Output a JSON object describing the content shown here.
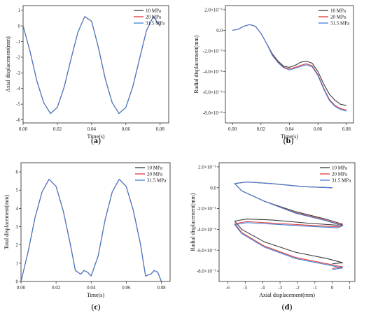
{
  "colors": {
    "10 MPa": "#3a3a3a",
    "20 MPa": "#e03a3a",
    "31.5 MPa": "#3f7fd6"
  },
  "chart_data": [
    {
      "id": "a",
      "type": "line",
      "label": "(a)",
      "xlabel": "Time(s)",
      "ylabel": "Axial displacement(mm)",
      "xlim": [
        0,
        0.085
      ],
      "ylim": [
        -6.2,
        1.3
      ],
      "xticks": [
        0.0,
        0.02,
        0.04,
        0.06,
        0.08
      ],
      "xtick_labels": [
        "0.00",
        "0.02",
        "0.04",
        "0.06",
        "0.08"
      ],
      "yticks": [
        1,
        0,
        -1,
        -2,
        -3,
        -4,
        -5,
        -6
      ],
      "ytick_labels": [
        "1",
        "0",
        "-1",
        "-2",
        "-3",
        "-4",
        "-5",
        "-6"
      ],
      "legend": "top-right",
      "series": [
        {
          "name": "10 MPa",
          "x": [
            0,
            0.004,
            0.008,
            0.012,
            0.016,
            0.02,
            0.024,
            0.028,
            0.032,
            0.036,
            0.04,
            0.044,
            0.048,
            0.052,
            0.056,
            0.06,
            0.064,
            0.068,
            0.072,
            0.076,
            0.08
          ],
          "y": [
            0,
            -1.6,
            -3.5,
            -4.9,
            -5.6,
            -5.2,
            -3.9,
            -2.1,
            -0.4,
            0.6,
            0.3,
            -1.4,
            -3.4,
            -4.9,
            -5.6,
            -5.2,
            -3.9,
            -2.1,
            -0.3,
            0.6,
            0.0
          ]
        },
        {
          "name": "20 MPa",
          "x": [
            0,
            0.004,
            0.008,
            0.012,
            0.016,
            0.02,
            0.024,
            0.028,
            0.032,
            0.036,
            0.04,
            0.044,
            0.048,
            0.052,
            0.056,
            0.06,
            0.064,
            0.068,
            0.072,
            0.076,
            0.08
          ],
          "y": [
            0,
            -1.6,
            -3.5,
            -4.9,
            -5.6,
            -5.2,
            -3.9,
            -2.1,
            -0.4,
            0.6,
            0.3,
            -1.4,
            -3.4,
            -4.9,
            -5.6,
            -5.2,
            -3.9,
            -2.1,
            -0.3,
            0.6,
            0.0
          ]
        },
        {
          "name": "31.5 MPa",
          "x": [
            0,
            0.004,
            0.008,
            0.012,
            0.016,
            0.02,
            0.024,
            0.028,
            0.032,
            0.036,
            0.04,
            0.044,
            0.048,
            0.052,
            0.056,
            0.06,
            0.064,
            0.068,
            0.072,
            0.076,
            0.08
          ],
          "y": [
            0,
            -1.6,
            -3.5,
            -4.9,
            -5.6,
            -5.2,
            -3.9,
            -2.1,
            -0.4,
            0.6,
            0.3,
            -1.4,
            -3.4,
            -4.9,
            -5.6,
            -5.2,
            -3.9,
            -2.1,
            -0.3,
            0.6,
            0.0
          ]
        }
      ]
    },
    {
      "id": "b",
      "type": "line",
      "label": "(b)",
      "xlabel": "Time(s)",
      "ylabel": "Radial displacement(mm)",
      "xlim": [
        -0.005,
        0.085
      ],
      "ylim": [
        -9e-06,
        2.4e-06
      ],
      "xticks": [
        0.0,
        0.02,
        0.04,
        0.06,
        0.08
      ],
      "xtick_labels": [
        "0.00",
        "0.02",
        "0.04",
        "0.06",
        "0.08"
      ],
      "yticks": [
        2e-06,
        0,
        -2e-06,
        -4e-06,
        -6e-06,
        -8e-06
      ],
      "ytick_labels": [
        "2.0×10⁻⁶",
        "0.0",
        "-2.0×10⁻⁶",
        "-4.0×10⁻⁶",
        "-6.0×10⁻⁶",
        "-8.0×10⁻⁶"
      ],
      "legend": "top-right",
      "series": [
        {
          "name": "10 MPa",
          "x": [
            0,
            0.004,
            0.008,
            0.012,
            0.016,
            0.02,
            0.024,
            0.028,
            0.032,
            0.036,
            0.04,
            0.044,
            0.048,
            0.052,
            0.056,
            0.06,
            0.064,
            0.068,
            0.072,
            0.076,
            0.08
          ],
          "y": [
            0,
            1e-07,
            4e-07,
            5.5e-07,
            4e-07,
            -3e-07,
            -1.3e-06,
            -2.3e-06,
            -3e-06,
            -3.5e-06,
            -3.6e-06,
            -3.4e-06,
            -3.1e-06,
            -3e-06,
            -3.2e-06,
            -4e-06,
            -5.2e-06,
            -6.2e-06,
            -6.8e-06,
            -7.2e-06,
            -7.3e-06
          ]
        },
        {
          "name": "20 MPa",
          "x": [
            0,
            0.004,
            0.008,
            0.012,
            0.016,
            0.02,
            0.024,
            0.028,
            0.032,
            0.036,
            0.04,
            0.044,
            0.048,
            0.052,
            0.056,
            0.06,
            0.064,
            0.068,
            0.072,
            0.076,
            0.08
          ],
          "y": [
            0,
            1e-07,
            4e-07,
            5.5e-07,
            4e-07,
            -3e-07,
            -1.3e-06,
            -2.4e-06,
            -3.1e-06,
            -3.6e-06,
            -3.75e-06,
            -3.6e-06,
            -3.4e-06,
            -3.25e-06,
            -3.45e-06,
            -4.3e-06,
            -5.6e-06,
            -6.7e-06,
            -7.3e-06,
            -7.6e-06,
            -7.75e-06
          ]
        },
        {
          "name": "31.5 MPa",
          "x": [
            0,
            0.004,
            0.008,
            0.012,
            0.016,
            0.02,
            0.024,
            0.028,
            0.032,
            0.036,
            0.04,
            0.044,
            0.048,
            0.052,
            0.056,
            0.06,
            0.064,
            0.068,
            0.072,
            0.076,
            0.08
          ],
          "y": [
            0,
            1e-07,
            4e-07,
            5.5e-07,
            4e-07,
            -3e-07,
            -1.3e-06,
            -2.45e-06,
            -3.15e-06,
            -3.65e-06,
            -3.85e-06,
            -3.7e-06,
            -3.5e-06,
            -3.35e-06,
            -3.55e-06,
            -4.4e-06,
            -5.7e-06,
            -6.8e-06,
            -7.4e-06,
            -7.7e-06,
            -7.85e-06
          ]
        }
      ]
    },
    {
      "id": "c",
      "type": "line",
      "label": "(c)",
      "xlabel": "Time(s)",
      "ylabel": "Total displacement(mm)",
      "xlim": [
        0,
        0.085
      ],
      "ylim": [
        0,
        6.5
      ],
      "xticks": [
        0.0,
        0.02,
        0.04,
        0.06,
        0.08
      ],
      "xtick_labels": [
        "0.00",
        "0.02",
        "0.04",
        "0.06",
        "0.08"
      ],
      "yticks": [
        0,
        1,
        2,
        3,
        4,
        5,
        6
      ],
      "ytick_labels": [
        "0",
        "1",
        "2",
        "3",
        "4",
        "5",
        "6"
      ],
      "legend": "top-right",
      "series": [
        {
          "name": "10 MPa",
          "x": [
            0,
            0.004,
            0.008,
            0.012,
            0.016,
            0.02,
            0.024,
            0.028,
            0.031,
            0.034,
            0.036,
            0.038,
            0.04,
            0.044,
            0.048,
            0.052,
            0.056,
            0.06,
            0.064,
            0.068,
            0.071,
            0.074,
            0.076,
            0.078,
            0.08
          ],
          "y": [
            0,
            1.6,
            3.5,
            4.9,
            5.6,
            5.2,
            3.9,
            2.1,
            0.6,
            0.4,
            0.6,
            0.5,
            0.3,
            1.4,
            3.4,
            4.9,
            5.6,
            5.2,
            3.9,
            2.1,
            0.3,
            0.4,
            0.6,
            0.5,
            0.0
          ]
        },
        {
          "name": "20 MPa",
          "x": [
            0,
            0.004,
            0.008,
            0.012,
            0.016,
            0.02,
            0.024,
            0.028,
            0.031,
            0.034,
            0.036,
            0.038,
            0.04,
            0.044,
            0.048,
            0.052,
            0.056,
            0.06,
            0.064,
            0.068,
            0.071,
            0.074,
            0.076,
            0.078,
            0.08
          ],
          "y": [
            0,
            1.6,
            3.5,
            4.9,
            5.6,
            5.2,
            3.9,
            2.1,
            0.6,
            0.4,
            0.6,
            0.5,
            0.3,
            1.4,
            3.4,
            4.9,
            5.6,
            5.2,
            3.9,
            2.1,
            0.3,
            0.4,
            0.6,
            0.5,
            0.0
          ]
        },
        {
          "name": "31.5 MPa",
          "x": [
            0,
            0.004,
            0.008,
            0.012,
            0.016,
            0.02,
            0.024,
            0.028,
            0.031,
            0.034,
            0.036,
            0.038,
            0.04,
            0.044,
            0.048,
            0.052,
            0.056,
            0.06,
            0.064,
            0.068,
            0.071,
            0.074,
            0.076,
            0.078,
            0.08
          ],
          "y": [
            0,
            1.6,
            3.5,
            4.9,
            5.6,
            5.2,
            3.9,
            2.1,
            0.6,
            0.4,
            0.6,
            0.5,
            0.3,
            1.4,
            3.4,
            4.9,
            5.6,
            5.2,
            3.9,
            2.1,
            0.3,
            0.4,
            0.6,
            0.5,
            0.0
          ]
        }
      ]
    },
    {
      "id": "d",
      "type": "line",
      "label": "(d)",
      "xlabel": "Axial displacement(mm)",
      "ylabel": "Radial displacement(mm)",
      "xlim": [
        -6.5,
        1.3
      ],
      "ylim": [
        -9e-06,
        2.4e-06
      ],
      "xticks": [
        -6,
        -5,
        -4,
        -3,
        -2,
        -1,
        0,
        1
      ],
      "xtick_labels": [
        "-6",
        "-5",
        "-4",
        "-3",
        "-2",
        "-1",
        "0",
        "1"
      ],
      "yticks": [
        2e-06,
        0,
        -2e-06,
        -4e-06,
        -6e-06,
        -8e-06
      ],
      "ytick_labels": [
        "2.0×10⁻⁶",
        "0.0",
        "-2.0×10⁻⁶",
        "-4.0×10⁻⁶",
        "-6.0×10⁻⁶",
        "-8.0×10⁻⁶"
      ],
      "legend": "top-right",
      "series": [
        {
          "name": "10 MPa",
          "x": [
            0,
            -1.6,
            -3.5,
            -4.9,
            -5.6,
            -5.2,
            -3.9,
            -2.1,
            -0.4,
            0.6,
            0.3,
            -1.4,
            -3.4,
            -4.9,
            -5.6,
            -5.2,
            -3.9,
            -2.1,
            -0.3,
            0.6,
            0.0
          ],
          "y": [
            0,
            1e-07,
            4e-07,
            5.5e-07,
            4e-07,
            -3e-07,
            -1.3e-06,
            -2.3e-06,
            -3e-06,
            -3.5e-06,
            -3.6e-06,
            -3.4e-06,
            -3.1e-06,
            -3e-06,
            -3.2e-06,
            -4e-06,
            -5.2e-06,
            -6.2e-06,
            -6.8e-06,
            -7.2e-06,
            -7.3e-06
          ]
        },
        {
          "name": "20 MPa",
          "x": [
            0,
            -1.6,
            -3.5,
            -4.9,
            -5.6,
            -5.2,
            -3.9,
            -2.1,
            -0.4,
            0.6,
            0.3,
            -1.4,
            -3.4,
            -4.9,
            -5.6,
            -5.2,
            -3.9,
            -2.1,
            -0.3,
            0.6,
            0.0
          ],
          "y": [
            0,
            1e-07,
            4e-07,
            5.5e-07,
            4e-07,
            -3e-07,
            -1.3e-06,
            -2.4e-06,
            -3.1e-06,
            -3.6e-06,
            -3.75e-06,
            -3.6e-06,
            -3.4e-06,
            -3.25e-06,
            -3.45e-06,
            -4.3e-06,
            -5.6e-06,
            -6.7e-06,
            -7.3e-06,
            -7.6e-06,
            -7.75e-06
          ]
        },
        {
          "name": "31.5 MPa",
          "x": [
            0,
            -1.6,
            -3.5,
            -4.9,
            -5.6,
            -5.2,
            -3.9,
            -2.1,
            -0.4,
            0.6,
            0.3,
            -1.4,
            -3.4,
            -4.9,
            -5.6,
            -5.2,
            -3.9,
            -2.1,
            -0.3,
            0.6,
            0.0
          ],
          "y": [
            0,
            1e-07,
            4e-07,
            5.5e-07,
            4e-07,
            -3e-07,
            -1.3e-06,
            -2.45e-06,
            -3.15e-06,
            -3.65e-06,
            -3.85e-06,
            -3.7e-06,
            -3.5e-06,
            -3.35e-06,
            -3.55e-06,
            -4.4e-06,
            -5.7e-06,
            -6.8e-06,
            -7.4e-06,
            -7.7e-06,
            -7.85e-06
          ]
        }
      ]
    }
  ]
}
